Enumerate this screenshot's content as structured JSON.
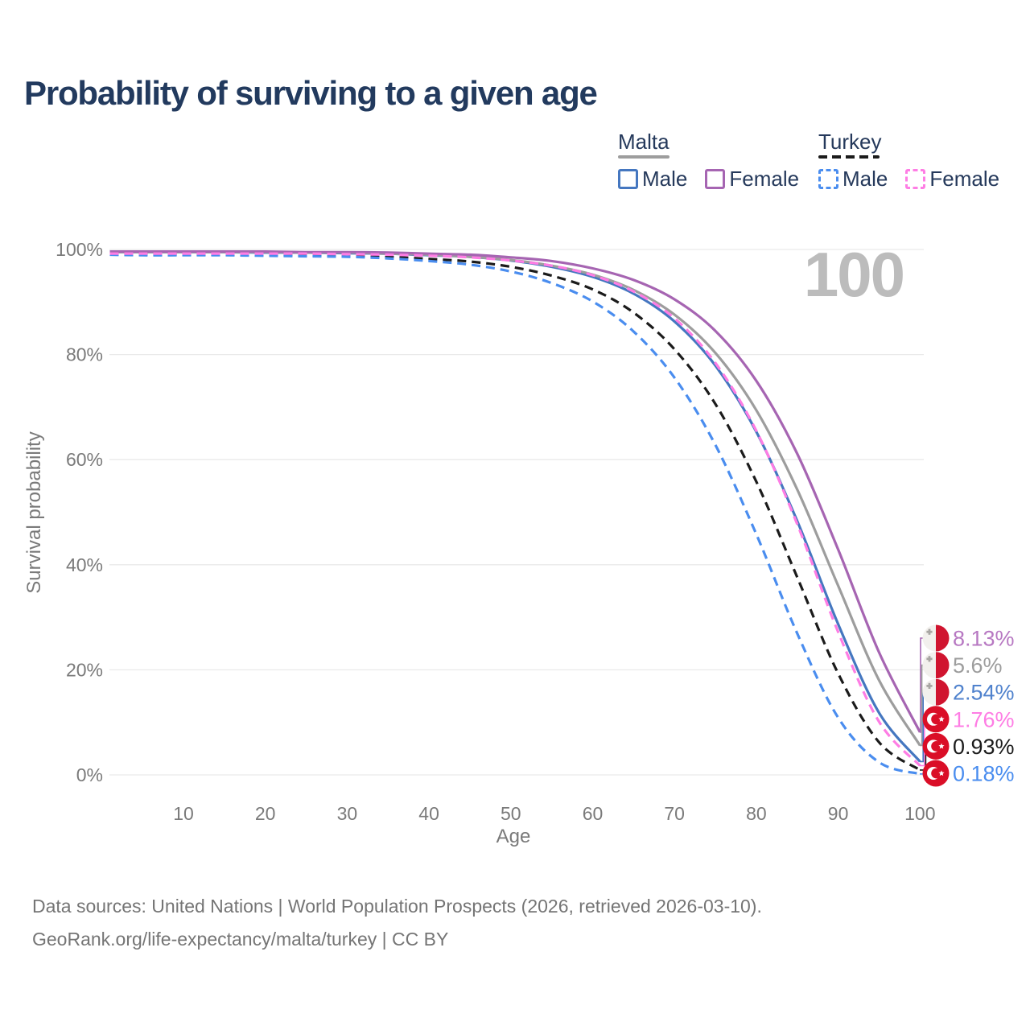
{
  "title": "Probability of surviving to a given age",
  "watermark_age": "100",
  "legend": {
    "groups": [
      {
        "name": "Malta",
        "items": [
          {
            "label": "Male"
          },
          {
            "label": "Female"
          }
        ]
      },
      {
        "name": "Turkey",
        "items": [
          {
            "label": "Male"
          },
          {
            "label": "Female"
          }
        ]
      }
    ]
  },
  "axes": {
    "x": {
      "label": "Age",
      "ticks": [
        10,
        20,
        30,
        40,
        50,
        60,
        70,
        80,
        90,
        100
      ]
    },
    "y": {
      "label": "Survival probability",
      "ticks": [
        0,
        20,
        40,
        60,
        80,
        100
      ],
      "tick_suffix": "%"
    }
  },
  "colors": {
    "malta_male": "#4577c0",
    "malta_female": "#a665b2",
    "malta": "#9d9d9d",
    "turkey_male": "#4a8def",
    "turkey_female": "#fe7de4",
    "turkey": "#1b1b1b",
    "grid": "#e9e9e9",
    "axis_text": "#7a7a7a",
    "title_text": "#223a5e",
    "watermark": "#bcbcbc",
    "footer_text": "#757575",
    "malta_flag_red": "#d0142f",
    "malta_flag_white": "#f2f0ed",
    "malta_flag_cross": "#a8a6a3",
    "turkey_flag_red": "#da0e27"
  },
  "end_labels": [
    {
      "series_key": "malta_female",
      "flag": "malta",
      "text": "8.13%",
      "text_color": "#b778c2"
    },
    {
      "series_key": "malta",
      "flag": "malta",
      "text": "5.6%",
      "text_color": "#9d9d9d"
    },
    {
      "series_key": "malta_male",
      "flag": "malta",
      "text": "2.54%",
      "text_color": "#5082cd"
    },
    {
      "series_key": "turkey_female",
      "flag": "turkey",
      "text": "1.76%",
      "text_color": "#fe7de4"
    },
    {
      "series_key": "turkey",
      "flag": "turkey",
      "text": "0.93%",
      "text_color": "#1b1b1b"
    },
    {
      "series_key": "turkey_male",
      "flag": "turkey",
      "text": "0.18%",
      "text_color": "#4a8def"
    }
  ],
  "footer": {
    "line1": "Data sources: United Nations | World Population Prospects (2026, retrieved 2026-03-10).",
    "line2": "GeoRank.org/life-expectancy/malta/turkey | CC BY"
  },
  "chart_data": {
    "type": "line",
    "title": "Probability of surviving to a given age",
    "xlabel": "Age",
    "ylabel": "Survival probability",
    "xlim": [
      1,
      100
    ],
    "ylim": [
      0,
      100
    ],
    "grid": "horizontal",
    "legend_position": "top-right",
    "hovered_age": 100,
    "x": [
      1,
      5,
      10,
      15,
      20,
      25,
      30,
      35,
      40,
      45,
      50,
      55,
      60,
      65,
      70,
      75,
      80,
      85,
      90,
      95,
      100
    ],
    "series": [
      {
        "key": "malta_female",
        "name": "Malta Female",
        "color_key": "malta_female",
        "dashed": false,
        "values": [
          99.6,
          99.6,
          99.6,
          99.6,
          99.6,
          99.5,
          99.5,
          99.4,
          99.2,
          99.0,
          98.5,
          97.8,
          96.4,
          94.2,
          90.5,
          84.5,
          75.0,
          61.1,
          42.9,
          23.3,
          8.13
        ]
      },
      {
        "key": "malta",
        "name": "Malta (both sexes)",
        "color_key": "malta",
        "dashed": false,
        "values": [
          99.5,
          99.5,
          99.5,
          99.5,
          99.5,
          99.4,
          99.4,
          99.2,
          99.0,
          98.6,
          98.0,
          96.9,
          95.2,
          92.3,
          87.6,
          80.3,
          69.4,
          54.3,
          36.0,
          18.0,
          5.6
        ]
      },
      {
        "key": "malta_male",
        "name": "Malta Male",
        "color_key": "malta_male",
        "dashed": false,
        "values": [
          99.5,
          99.5,
          99.5,
          99.5,
          99.4,
          99.4,
          99.3,
          99.2,
          98.9,
          98.6,
          97.9,
          96.7,
          94.8,
          91.6,
          86.3,
          77.9,
          65.3,
          48.3,
          28.7,
          11.8,
          2.54
        ]
      },
      {
        "key": "turkey_female",
        "name": "Turkey Female",
        "color_key": "turkey_female",
        "dashed": true,
        "values": [
          99.2,
          99.2,
          99.2,
          99.2,
          99.2,
          99.2,
          99.1,
          99.0,
          98.8,
          98.5,
          97.9,
          96.9,
          95.1,
          92.0,
          86.9,
          78.4,
          65.5,
          47.7,
          27.2,
          10.1,
          1.76
        ]
      },
      {
        "key": "turkey",
        "name": "Turkey (both sexes)",
        "color_key": "turkey",
        "dashed": true,
        "values": [
          99.1,
          99.1,
          99.1,
          99.0,
          99.0,
          98.9,
          98.8,
          98.6,
          98.2,
          97.7,
          96.7,
          95.0,
          92.4,
          88.0,
          81.0,
          70.6,
          55.8,
          37.6,
          19.3,
          6.2,
          0.93
        ]
      },
      {
        "key": "turkey_male",
        "name": "Turkey Male",
        "color_key": "turkey_male",
        "dashed": true,
        "values": [
          99.0,
          98.9,
          98.9,
          98.9,
          98.8,
          98.7,
          98.6,
          98.3,
          97.8,
          97.1,
          95.8,
          93.6,
          90.1,
          84.4,
          75.6,
          62.8,
          45.8,
          26.9,
          10.9,
          2.4,
          0.18
        ]
      }
    ],
    "draw_order": [
      "malta_male",
      "malta",
      "malta_female",
      "turkey",
      "turkey_male",
      "turkey_female"
    ]
  }
}
